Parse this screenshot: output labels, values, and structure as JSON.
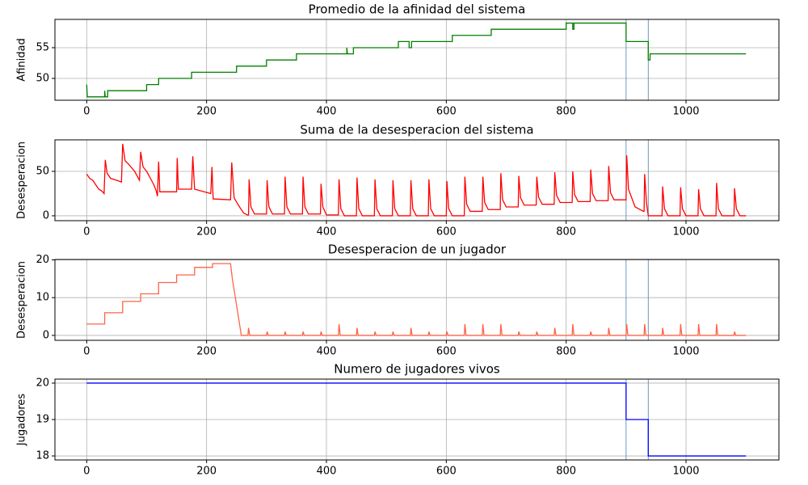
{
  "chart_data": [
    {
      "type": "line",
      "title": "Promedio de la afinidad del sistema",
      "ylabel": "Afinidad",
      "color": "#008000",
      "x": [
        0,
        1,
        30,
        30,
        31,
        35,
        35,
        100,
        100,
        120,
        120,
        175,
        175,
        250,
        250,
        300,
        300,
        350,
        350,
        434,
        434,
        435,
        445,
        445,
        520,
        520,
        538,
        538,
        542,
        542,
        610,
        610,
        675,
        675,
        800,
        800,
        811,
        811,
        813,
        813,
        900,
        900,
        937,
        937,
        940,
        940,
        1100
      ],
      "values": [
        49,
        47,
        47,
        48,
        47,
        47,
        48,
        48,
        49,
        49,
        50,
        50,
        51,
        51,
        52,
        52,
        53,
        53,
        54,
        54,
        55,
        54,
        54,
        55,
        55,
        56,
        56,
        55,
        55,
        56,
        56,
        57,
        57,
        58,
        58,
        59,
        59,
        58,
        58,
        59,
        59,
        56,
        56,
        53,
        53,
        54,
        54
      ],
      "xlim": [
        -53,
        1155
      ],
      "xticks": [
        0,
        200,
        400,
        600,
        800,
        1000
      ],
      "ylim": [
        46.45,
        59.6
      ],
      "yticks": [
        50,
        55
      ],
      "grid": true,
      "vlines": [
        900,
        937
      ],
      "vline_color": "#5b8db8"
    },
    {
      "type": "line",
      "title": "Suma de la desesperacion del sistema",
      "ylabel": "Desesperacion",
      "color": "#ff0000",
      "x": [
        0,
        5,
        10,
        15,
        20,
        25,
        29,
        31,
        34,
        40,
        50,
        58,
        60,
        64,
        70,
        80,
        88,
        90,
        94,
        100,
        108,
        112,
        116,
        118,
        120,
        122,
        150,
        151,
        153,
        175,
        177,
        180,
        207,
        209,
        211,
        240,
        242,
        246,
        255,
        262,
        268,
        270,
        271,
        274,
        280,
        300,
        301,
        304,
        310,
        330,
        331,
        334,
        340,
        360,
        361,
        364,
        370,
        390,
        391,
        394,
        400,
        420,
        421,
        424,
        430,
        450,
        451,
        454,
        460,
        480,
        481,
        484,
        490,
        510,
        511,
        514,
        520,
        540,
        541,
        544,
        550,
        570,
        571,
        574,
        580,
        600,
        601,
        604,
        610,
        630,
        631,
        634,
        640,
        660,
        661,
        664,
        670,
        690,
        691,
        694,
        700,
        720,
        721,
        724,
        730,
        750,
        751,
        754,
        760,
        780,
        781,
        784,
        790,
        810,
        811,
        814,
        820,
        840,
        841,
        844,
        850,
        870,
        871,
        874,
        880,
        900,
        901,
        904,
        915,
        929,
        930,
        931,
        934,
        937,
        960,
        961,
        964,
        970,
        990,
        991,
        994,
        1000,
        1020,
        1021,
        1024,
        1030,
        1050,
        1051,
        1054,
        1060,
        1080,
        1081,
        1084,
        1090,
        1100
      ],
      "values": [
        47,
        42,
        40,
        35,
        30,
        28,
        25,
        63,
        48,
        42,
        40,
        38,
        81,
        62,
        58,
        50,
        40,
        72,
        55,
        50,
        40,
        35,
        28,
        22,
        61,
        27,
        27,
        65,
        30,
        30,
        67,
        30,
        25,
        55,
        19,
        18,
        60,
        20,
        10,
        3,
        1,
        1,
        41,
        10,
        2,
        2,
        40,
        10,
        2,
        2,
        44,
        10,
        2,
        2,
        44,
        10,
        2,
        2,
        36,
        10,
        1,
        1,
        41,
        8,
        0,
        0,
        43,
        8,
        0,
        0,
        41,
        8,
        0,
        0,
        40,
        8,
        0,
        0,
        40,
        8,
        0,
        0,
        41,
        8,
        0,
        0,
        39,
        8,
        0,
        0,
        44,
        13,
        5,
        5,
        44,
        15,
        7,
        7,
        48,
        18,
        10,
        10,
        45,
        20,
        12,
        12,
        44,
        21,
        13,
        13,
        49,
        23,
        15,
        15,
        50,
        24,
        16,
        16,
        52,
        25,
        17,
        17,
        56,
        26,
        18,
        18,
        68,
        30,
        10,
        5,
        5,
        47,
        15,
        0,
        0,
        33,
        8,
        0,
        0,
        32,
        8,
        0,
        0,
        30,
        8,
        0,
        0,
        37,
        8,
        0,
        0,
        31,
        8,
        0,
        0
      ],
      "xlim": [
        -53,
        1155
      ],
      "xticks": [
        0,
        200,
        400,
        600,
        800,
        1000
      ],
      "ylim": [
        -5.5,
        85.5
      ],
      "yticks": [
        0,
        50
      ],
      "grid": true,
      "vlines": [
        900,
        937
      ],
      "vline_color": "#5b8db8"
    },
    {
      "type": "line",
      "title": "Desesperacion de un jugador",
      "ylabel": "Desesperacion",
      "color": "#ff6347",
      "x": [
        0,
        30,
        30,
        60,
        60,
        90,
        90,
        120,
        120,
        150,
        150,
        180,
        180,
        210,
        210,
        240,
        243,
        248,
        252,
        256,
        258,
        269,
        270,
        272,
        300,
        301,
        303,
        330,
        331,
        333,
        360,
        361,
        363,
        390,
        391,
        393,
        420,
        421,
        423,
        450,
        451,
        453,
        480,
        481,
        483,
        510,
        511,
        513,
        540,
        541,
        543,
        570,
        571,
        573,
        600,
        601,
        603,
        630,
        631,
        633,
        660,
        661,
        663,
        690,
        691,
        693,
        720,
        721,
        723,
        750,
        751,
        753,
        780,
        781,
        783,
        810,
        811,
        813,
        840,
        841,
        843,
        870,
        871,
        873,
        900,
        901,
        903,
        930,
        931,
        933,
        960,
        961,
        963,
        990,
        991,
        993,
        1020,
        1021,
        1023,
        1050,
        1051,
        1053,
        1080,
        1081,
        1083,
        1100
      ],
      "values": [
        3,
        3,
        6,
        6,
        9,
        9,
        11,
        11,
        14,
        14,
        16,
        16,
        18,
        18,
        19,
        19,
        15,
        10,
        6,
        2,
        0,
        0,
        2,
        0,
        0,
        1,
        0,
        0,
        1,
        0,
        0,
        1,
        0,
        0,
        1,
        0,
        0,
        3,
        0,
        0,
        2,
        0,
        0,
        1,
        0,
        0,
        1,
        0,
        0,
        2,
        0,
        0,
        1,
        0,
        0,
        1,
        0,
        0,
        3,
        0,
        0,
        3,
        0,
        0,
        3,
        0,
        0,
        1,
        0,
        0,
        1,
        0,
        0,
        2,
        0,
        0,
        3,
        0,
        0,
        1,
        0,
        0,
        2,
        0,
        0,
        3,
        0,
        0,
        3,
        0,
        0,
        2,
        0,
        0,
        3,
        0,
        0,
        3,
        0,
        0,
        3,
        0,
        0,
        1,
        0,
        0
      ],
      "xlim": [
        -53,
        1155
      ],
      "xticks": [
        0,
        200,
        400,
        600,
        800,
        1000
      ],
      "ylim": [
        -1.3,
        20.1
      ],
      "yticks": [
        0,
        10,
        20
      ],
      "grid": true,
      "vlines": [
        900,
        937
      ],
      "vline_color": "#5b8db8"
    },
    {
      "type": "line",
      "title": "Numero de jugadores vivos",
      "ylabel": "Jugadores",
      "color": "#0000ff",
      "x": [
        0,
        900,
        900,
        937,
        937,
        1100
      ],
      "values": [
        20,
        20,
        19,
        19,
        18,
        18
      ],
      "xlim": [
        -53,
        1155
      ],
      "xticks": [
        0,
        200,
        400,
        600,
        800,
        1000
      ],
      "ylim": [
        17.89,
        20.11
      ],
      "yticks": [
        18,
        19,
        20
      ],
      "grid": true,
      "vlines": [
        900,
        937
      ],
      "vline_color": "#5b8db8"
    }
  ]
}
